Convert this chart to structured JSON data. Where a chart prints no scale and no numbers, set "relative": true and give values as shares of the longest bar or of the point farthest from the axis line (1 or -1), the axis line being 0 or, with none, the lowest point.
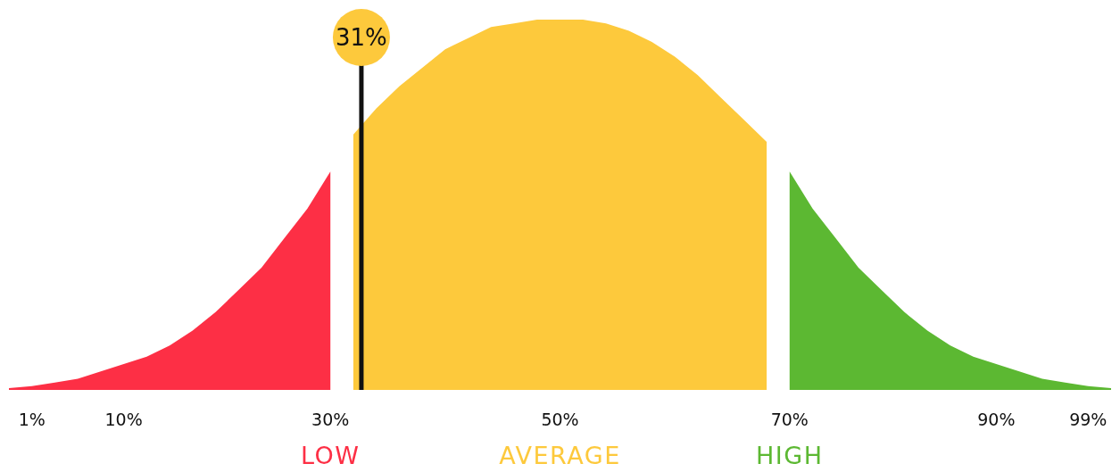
{
  "chart_data": {
    "type": "area",
    "relative": true,
    "categories": [
      null,
      "1%",
      null,
      null,
      null,
      "10%",
      null,
      null,
      null,
      null,
      null,
      null,
      null,
      null,
      "30%",
      null,
      null,
      null,
      null,
      null,
      null,
      null,
      null,
      null,
      "50%",
      null,
      null,
      null,
      null,
      null,
      null,
      null,
      null,
      null,
      "70%",
      null,
      null,
      null,
      null,
      null,
      null,
      null,
      null,
      "90%",
      null,
      null,
      null,
      "99%",
      null
    ],
    "series": [
      {
        "name": "LOW",
        "color": "#fd2f45",
        "values": [
          0.005,
          0.01,
          0.02,
          0.03,
          0.05,
          0.07,
          0.09,
          0.12,
          0.16,
          0.21,
          0.27,
          0.33,
          0.41,
          0.49,
          0.59,
          null,
          null,
          null,
          null,
          null,
          null,
          null,
          null,
          null,
          null,
          null,
          null,
          null,
          null,
          null,
          null,
          null,
          null,
          null,
          null,
          null,
          null,
          null,
          null,
          null,
          null,
          null,
          null,
          null,
          null,
          null,
          null,
          null,
          null
        ]
      },
      {
        "name": "AVERAGE",
        "color": "#fdc93c",
        "values": [
          null,
          null,
          null,
          null,
          null,
          null,
          null,
          null,
          null,
          null,
          null,
          null,
          null,
          null,
          null,
          0.69,
          0.76,
          0.82,
          0.87,
          0.92,
          0.95,
          0.98,
          0.99,
          1,
          1,
          1,
          0.99,
          0.97,
          0.94,
          0.9,
          0.85,
          0.79,
          0.73,
          0.67,
          null,
          null,
          null,
          null,
          null,
          null,
          null,
          null,
          null,
          null,
          null,
          null,
          null,
          null,
          null
        ]
      },
      {
        "name": "HIGH",
        "color": "#5cb832",
        "values": [
          null,
          null,
          null,
          null,
          null,
          null,
          null,
          null,
          null,
          null,
          null,
          null,
          null,
          null,
          null,
          null,
          null,
          null,
          null,
          null,
          null,
          null,
          null,
          null,
          null,
          null,
          null,
          null,
          null,
          null,
          null,
          null,
          null,
          null,
          0.59,
          0.49,
          0.41,
          0.33,
          0.27,
          0.21,
          0.16,
          0.12,
          0.09,
          0.07,
          0.05,
          0.03,
          0.02,
          0.01,
          0.005
        ]
      }
    ],
    "annotations": [
      "31%"
    ],
    "grid": false,
    "legend": false
  }
}
